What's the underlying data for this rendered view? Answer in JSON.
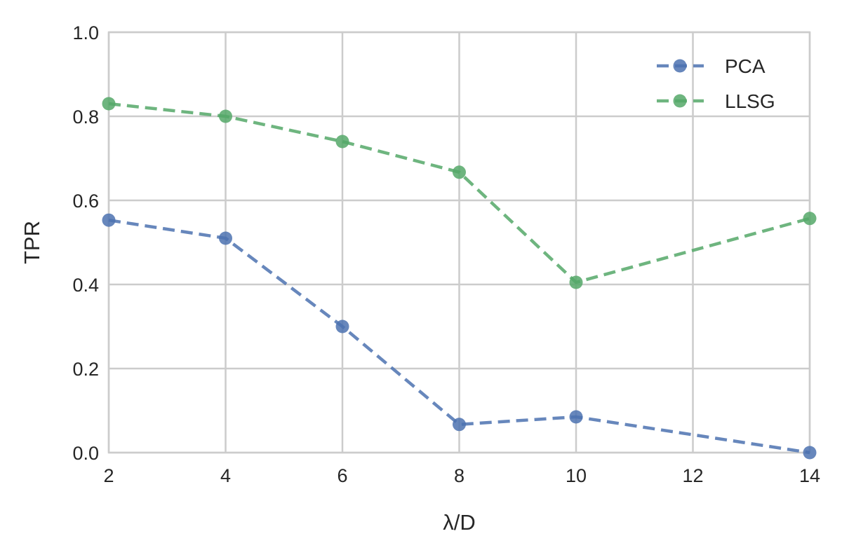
{
  "chart_data": {
    "type": "line",
    "xlabel": "λ/D",
    "ylabel": "TPR",
    "xlim": [
      2,
      14
    ],
    "ylim": [
      0.0,
      1.0
    ],
    "xticks": [
      2,
      4,
      6,
      8,
      10,
      12,
      14
    ],
    "yticks": [
      0.0,
      0.2,
      0.4,
      0.6,
      0.8,
      1.0
    ],
    "xtick_labels": [
      "2",
      "4",
      "6",
      "8",
      "10",
      "12",
      "14"
    ],
    "ytick_labels": [
      "0.0",
      "0.2",
      "0.4",
      "0.6",
      "0.8",
      "1.0"
    ],
    "grid": true,
    "legend_position": "top-right",
    "line_style": "dashed",
    "marker": "circle",
    "series": [
      {
        "name": "PCA",
        "color": "#4c72b0",
        "x": [
          2,
          4,
          6,
          8,
          10,
          14
        ],
        "y": [
          0.553,
          0.51,
          0.3,
          0.067,
          0.085,
          0.0
        ]
      },
      {
        "name": "LLSG",
        "color": "#55a868",
        "x": [
          2,
          4,
          6,
          8,
          10,
          14
        ],
        "y": [
          0.83,
          0.8,
          0.74,
          0.667,
          0.405,
          0.557
        ]
      }
    ]
  }
}
